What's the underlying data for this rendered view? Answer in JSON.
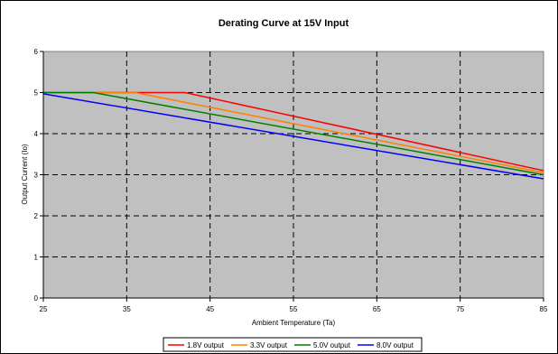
{
  "chart_data": {
    "type": "line",
    "title": "Derating Curve at 15V Input",
    "xlabel": "Ambient Temperature (Ta)",
    "ylabel": "Output Current (Io)",
    "xlim": [
      25,
      85
    ],
    "ylim": [
      0,
      6
    ],
    "x_ticks": [
      "25",
      "35",
      "45",
      "55",
      "65",
      "75",
      "85"
    ],
    "y_ticks": [
      "0",
      "1",
      "2",
      "3",
      "4",
      "5",
      "6"
    ],
    "grid": true,
    "legend_position": "bottom",
    "plot_background": "#c0c0c0",
    "series": [
      {
        "name": "1.8V output",
        "color": "#ff0000",
        "x": [
          25,
          42,
          85
        ],
        "y": [
          5.0,
          5.0,
          3.1
        ]
      },
      {
        "name": "3.3V output",
        "color": "#ff8000",
        "x": [
          25,
          36,
          85
        ],
        "y": [
          5.0,
          5.0,
          3.05
        ]
      },
      {
        "name": "5.0V output",
        "color": "#008000",
        "x": [
          25,
          31,
          85
        ],
        "y": [
          5.0,
          5.0,
          3.0
        ]
      },
      {
        "name": "8.0V output",
        "color": "#0000ff",
        "x": [
          25,
          85
        ],
        "y": [
          4.97,
          2.9
        ]
      }
    ]
  }
}
